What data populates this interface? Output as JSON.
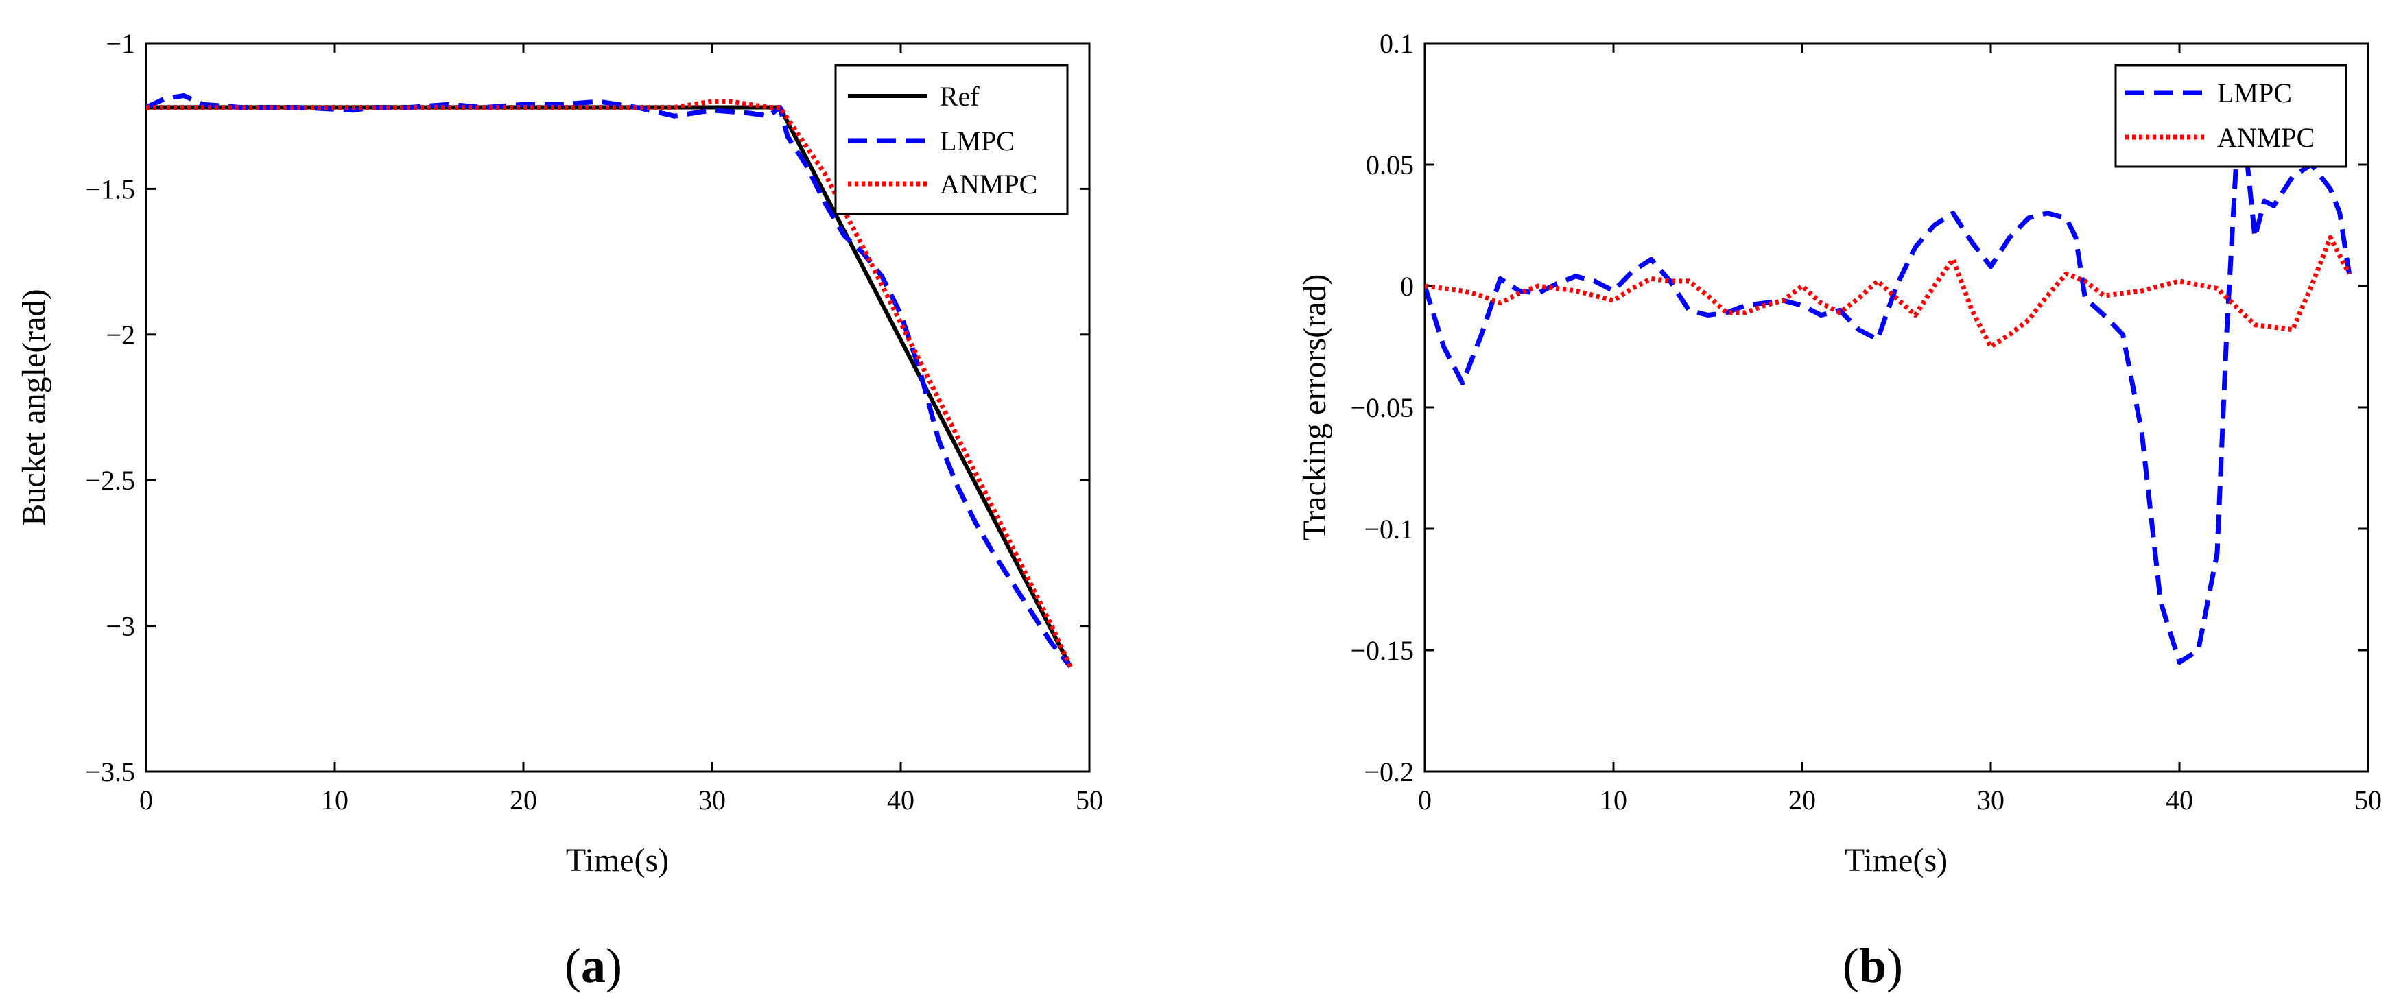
{
  "chart_data": [
    {
      "panel_label": "(a)",
      "panel_letter": "a",
      "type": "line",
      "xlabel": "Time(s)",
      "ylabel": "Bucket angle(rad)",
      "xlim": [
        0,
        50
      ],
      "ylim": [
        -3.5,
        -1
      ],
      "xticks": [
        0,
        10,
        20,
        30,
        40,
        50
      ],
      "xtick_labels": [
        "0",
        "10",
        "20",
        "30",
        "40",
        "50"
      ],
      "yticks": [
        -1,
        -1.5,
        -2,
        -2.5,
        -3,
        -3.5
      ],
      "ytick_labels": [
        "−1",
        "−1.5",
        "−2",
        "−2.5",
        "−3",
        "−3.5"
      ],
      "legend_position": "top-right",
      "series": [
        {
          "name": "Ref",
          "color": "#000000",
          "style": "solid",
          "x": [
            0,
            33.6,
            49
          ],
          "y": [
            -1.22,
            -1.22,
            -3.14
          ]
        },
        {
          "name": "LMPC",
          "color": "#0000ff",
          "style": "dashed",
          "x": [
            0,
            1,
            2,
            3,
            5,
            8,
            11,
            12,
            14,
            16,
            18,
            20,
            22,
            24,
            26,
            28,
            30,
            32,
            33,
            33.6,
            34,
            35,
            36,
            37,
            38,
            39,
            40,
            41,
            42,
            43,
            44,
            45,
            46,
            47,
            48,
            49
          ],
          "y": [
            -1.22,
            -1.19,
            -1.18,
            -1.21,
            -1.22,
            -1.22,
            -1.23,
            -1.22,
            -1.22,
            -1.21,
            -1.22,
            -1.21,
            -1.21,
            -1.2,
            -1.22,
            -1.25,
            -1.23,
            -1.24,
            -1.25,
            -1.22,
            -1.32,
            -1.42,
            -1.55,
            -1.66,
            -1.72,
            -1.8,
            -1.93,
            -2.12,
            -2.36,
            -2.52,
            -2.65,
            -2.76,
            -2.86,
            -2.96,
            -3.06,
            -3.14
          ]
        },
        {
          "name": "ANMPC",
          "color": "#ff0000",
          "style": "dotted",
          "x": [
            0,
            5,
            10,
            15,
            20,
            25,
            28,
            30,
            31,
            32,
            33,
            33.6,
            36,
            38,
            40,
            42,
            44,
            46,
            48,
            49
          ],
          "y": [
            -1.22,
            -1.22,
            -1.22,
            -1.22,
            -1.22,
            -1.22,
            -1.22,
            -1.2,
            -1.2,
            -1.21,
            -1.22,
            -1.22,
            -1.45,
            -1.7,
            -1.96,
            -2.22,
            -2.48,
            -2.74,
            -3.0,
            -3.14
          ]
        }
      ]
    },
    {
      "panel_label": "(b)",
      "panel_letter": "b",
      "type": "line",
      "xlabel": "Time(s)",
      "ylabel": "Tracking errors(rad)",
      "xlim": [
        0,
        50
      ],
      "ylim": [
        -0.2,
        0.1
      ],
      "xticks": [
        0,
        10,
        20,
        30,
        40,
        50
      ],
      "xtick_labels": [
        "0",
        "10",
        "20",
        "30",
        "40",
        "50"
      ],
      "yticks": [
        0.1,
        0.05,
        0,
        -0.05,
        -0.1,
        -0.15,
        -0.2
      ],
      "ytick_labels": [
        "0.1",
        "0.05",
        "0",
        "−0.05",
        "−0.1",
        "−0.15",
        "−0.2"
      ],
      "legend_position": "top-right",
      "series": [
        {
          "name": "LMPC",
          "color": "#0000ff",
          "style": "dashed",
          "x": [
            0,
            1,
            2,
            3,
            4,
            5,
            6,
            7,
            8,
            9,
            10,
            11,
            12,
            13,
            14,
            15,
            16,
            17,
            18,
            19,
            20,
            21,
            22,
            23,
            24,
            25,
            26,
            27,
            28,
            29,
            30,
            31,
            32,
            33,
            34,
            34.5,
            35,
            36,
            37,
            38,
            39,
            40,
            41,
            42,
            42.5,
            43,
            43.5,
            44,
            44.5,
            45,
            46,
            47,
            48,
            48.5,
            49
          ],
          "y": [
            0,
            -0.025,
            -0.04,
            -0.02,
            0.003,
            -0.002,
            -0.003,
            0.001,
            0.004,
            0.002,
            -0.002,
            0.006,
            0.011,
            0.002,
            -0.01,
            -0.012,
            -0.011,
            -0.008,
            -0.007,
            -0.006,
            -0.008,
            -0.012,
            -0.01,
            -0.018,
            -0.022,
            0.0,
            0.016,
            0.025,
            0.03,
            0.018,
            0.008,
            0.02,
            0.028,
            0.03,
            0.028,
            0.02,
            -0.005,
            -0.012,
            -0.02,
            -0.06,
            -0.13,
            -0.155,
            -0.15,
            -0.11,
            -0.02,
            0.05,
            0.058,
            0.02,
            0.035,
            0.033,
            0.045,
            0.05,
            0.04,
            0.03,
            0.005
          ]
        },
        {
          "name": "ANMPC",
          "color": "#ff0000",
          "style": "dotted",
          "x": [
            0,
            1,
            2,
            3,
            4,
            5,
            6,
            7,
            8,
            9,
            10,
            11,
            12,
            13,
            14,
            15,
            16,
            17,
            18,
            19,
            20,
            21,
            22,
            23,
            24,
            25,
            26,
            27,
            28,
            29,
            30,
            31,
            32,
            33,
            34,
            35,
            36,
            38,
            40,
            42,
            44,
            46,
            47,
            48,
            49
          ],
          "y": [
            0,
            -0.001,
            -0.002,
            -0.004,
            -0.007,
            -0.003,
            0.0,
            -0.001,
            -0.002,
            -0.004,
            -0.006,
            -0.001,
            0.003,
            0.002,
            0.002,
            -0.004,
            -0.011,
            -0.011,
            -0.008,
            -0.006,
            0.0,
            -0.007,
            -0.011,
            -0.005,
            0.002,
            -0.005,
            -0.012,
            0.0,
            0.011,
            -0.01,
            -0.025,
            -0.02,
            -0.014,
            -0.004,
            0.005,
            0.002,
            -0.004,
            -0.002,
            0.002,
            -0.001,
            -0.016,
            -0.018,
            0.0,
            0.02,
            0.005
          ]
        }
      ]
    }
  ]
}
